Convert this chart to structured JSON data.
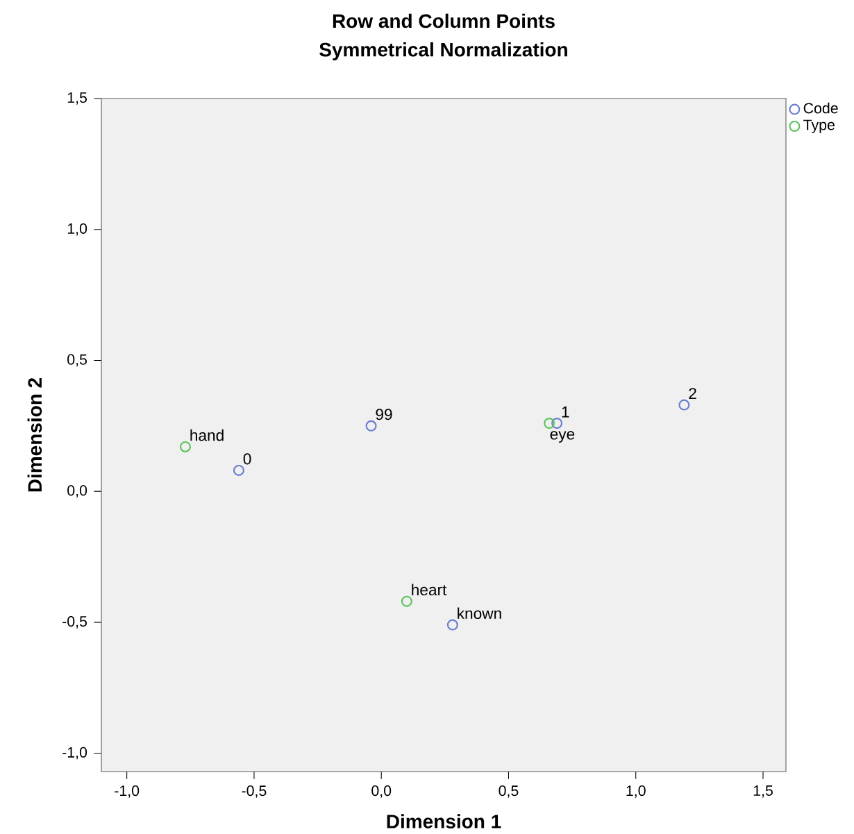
{
  "chart_data": {
    "type": "scatter",
    "title": "Row and Column Points",
    "subtitle": "Symmetrical Normalization",
    "xlabel": "Dimension 1",
    "ylabel": "Dimension 2",
    "series": [
      {
        "name": "Code",
        "color": "#6b7fcf",
        "x": [
          -0.56,
          -0.04,
          0.69,
          1.19,
          0.28
        ],
        "values": [
          0.08,
          0.25,
          0.26,
          0.33,
          -0.51
        ]
      },
      {
        "name": "Type",
        "color": "#5dc45d",
        "x": [
          -0.77,
          0.66,
          0.1
        ],
        "values": [
          0.17,
          0.26,
          -0.42
        ]
      }
    ],
    "annotations": [
      {
        "text": "0",
        "x": -0.56,
        "y": 0.08
      },
      {
        "text": "99",
        "x": -0.04,
        "y": 0.25
      },
      {
        "text": "1",
        "x": 0.69,
        "y": 0.26
      },
      {
        "text": "2",
        "x": 1.19,
        "y": 0.33
      },
      {
        "text": "known",
        "x": 0.28,
        "y": -0.51
      },
      {
        "text": "hand",
        "x": -0.77,
        "y": 0.17
      },
      {
        "text": "eye",
        "x": 0.66,
        "y": 0.26
      },
      {
        "text": "heart",
        "x": 0.1,
        "y": -0.42
      }
    ],
    "xlim": [
      -1.1,
      1.59
    ],
    "ylim": [
      -1.07,
      1.5
    ],
    "xticks": [
      {
        "value": -1.0,
        "label": "-1,0"
      },
      {
        "value": -0.5,
        "label": "-0,5"
      },
      {
        "value": 0.0,
        "label": "0,0"
      },
      {
        "value": 0.5,
        "label": "0,5"
      },
      {
        "value": 1.0,
        "label": "1,0"
      },
      {
        "value": 1.5,
        "label": "1,5"
      }
    ],
    "yticks": [
      {
        "value": -1.0,
        "label": "-1,0"
      },
      {
        "value": -0.5,
        "label": "-0,5"
      },
      {
        "value": 0.0,
        "label": "0,0"
      },
      {
        "value": 0.5,
        "label": "0,5"
      },
      {
        "value": 1.0,
        "label": "1,0"
      },
      {
        "value": 1.5,
        "label": "1,5"
      }
    ],
    "marker": "circle",
    "legend": "top right",
    "grid": false
  }
}
